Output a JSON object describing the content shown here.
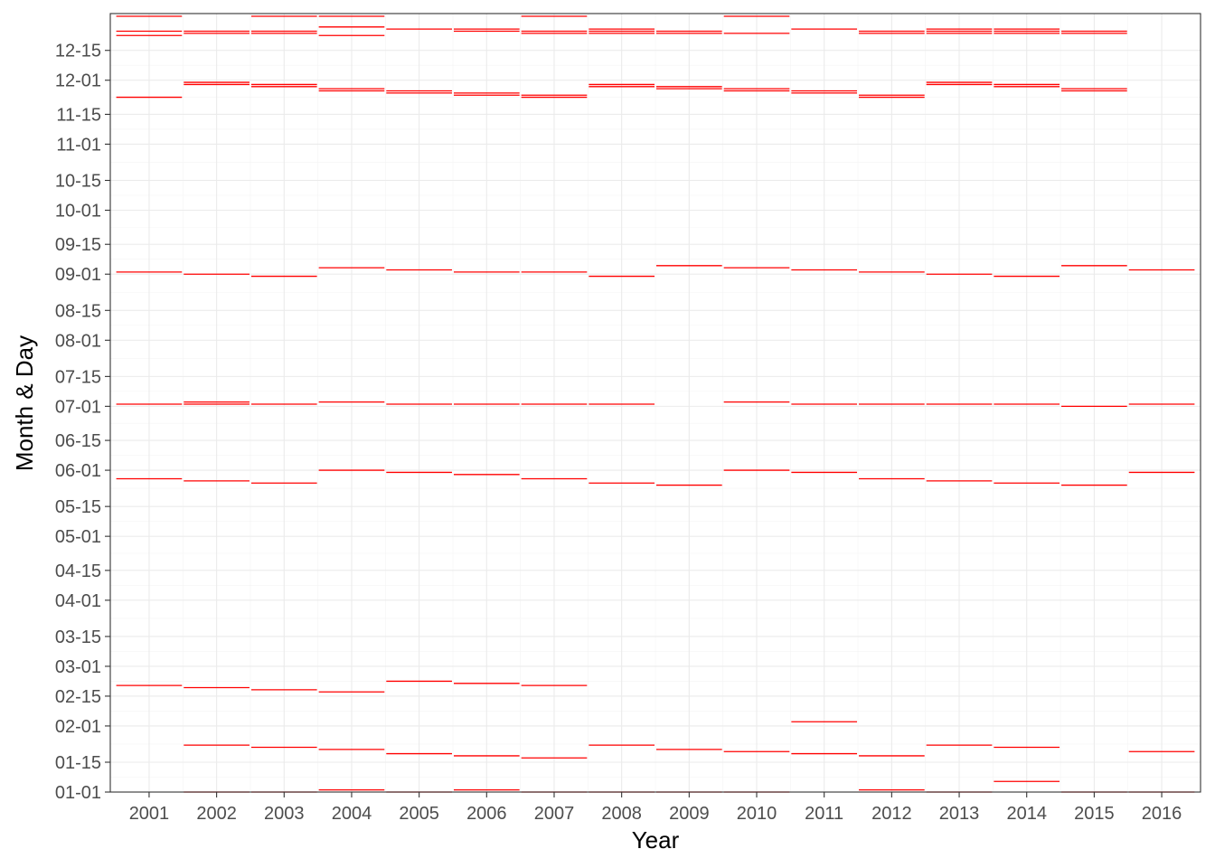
{
  "chart_data": {
    "type": "line",
    "xlabel": "Year",
    "ylabel": "Month & Day",
    "x": [
      "2001",
      "2002",
      "2003",
      "2004",
      "2005",
      "2006",
      "2007",
      "2008",
      "2009",
      "2010",
      "2011",
      "2012",
      "2013",
      "2014",
      "2015",
      "2016"
    ],
    "y_ticks": [
      "01-01",
      "01-15",
      "02-01",
      "02-15",
      "03-01",
      "03-15",
      "04-01",
      "04-15",
      "05-01",
      "05-15",
      "06-01",
      "06-15",
      "07-01",
      "07-15",
      "08-01",
      "08-15",
      "09-01",
      "09-15",
      "10-01",
      "10-15",
      "11-01",
      "11-15",
      "12-01",
      "12-15"
    ],
    "ylim": [
      "01-01",
      "12-31"
    ],
    "grid": true,
    "line_color": "#ff0000",
    "segments": {
      "2001": [
        "02-20",
        "05-28",
        "07-02",
        "09-02",
        "11-23",
        "12-22",
        "12-24",
        "12-31"
      ],
      "2002": [
        "01-01",
        "01-23",
        "02-19",
        "05-27",
        "07-02",
        "07-03",
        "09-01",
        "11-29",
        "11-30",
        "12-23",
        "12-24"
      ],
      "2003": [
        "01-01",
        "01-22",
        "02-18",
        "05-26",
        "07-02",
        "08-31",
        "11-28",
        "11-29",
        "12-23",
        "12-24",
        "12-31"
      ],
      "2004": [
        "01-02",
        "01-21",
        "02-17",
        "06-01",
        "07-03",
        "09-04",
        "11-26",
        "11-27",
        "12-22",
        "12-26",
        "12-31"
      ],
      "2005": [
        "01-01",
        "01-19",
        "02-22",
        "05-31",
        "07-02",
        "09-03",
        "11-25",
        "11-26",
        "12-25"
      ],
      "2006": [
        "01-02",
        "01-18",
        "02-21",
        "05-30",
        "07-02",
        "09-02",
        "11-24",
        "11-25",
        "12-24",
        "12-25"
      ],
      "2007": [
        "01-01",
        "01-17",
        "02-20",
        "05-28",
        "07-02",
        "09-02",
        "11-23",
        "11-24",
        "12-23",
        "12-24",
        "12-31"
      ],
      "2008": [
        "01-01",
        "01-23",
        "05-26",
        "07-02",
        "08-31",
        "11-28",
        "11-29",
        "12-23",
        "12-24",
        "12-25"
      ],
      "2009": [
        "01-01",
        "01-21",
        "05-25",
        "09-05",
        "11-27",
        "11-28",
        "12-23",
        "12-24"
      ],
      "2010": [
        "01-01",
        "01-20",
        "06-01",
        "07-03",
        "09-04",
        "11-26",
        "11-27",
        "12-23",
        "12-31"
      ],
      "2011": [
        "01-19",
        "02-03",
        "05-31",
        "07-02",
        "09-03",
        "11-25",
        "11-26",
        "12-25"
      ],
      "2012": [
        "01-02",
        "01-18",
        "05-28",
        "07-02",
        "09-02",
        "11-23",
        "11-24",
        "12-23",
        "12-24"
      ],
      "2013": [
        "01-01",
        "01-23",
        "05-27",
        "07-02",
        "09-01",
        "11-29",
        "11-30",
        "12-23",
        "12-24",
        "12-25"
      ],
      "2014": [
        "01-06",
        "01-22",
        "05-26",
        "07-02",
        "08-31",
        "11-28",
        "11-29",
        "12-23",
        "12-24",
        "12-25"
      ],
      "2015": [
        "01-01",
        "05-25",
        "07-01",
        "09-05",
        "11-26",
        "11-27",
        "12-23",
        "12-24"
      ],
      "2016": [
        "01-01",
        "01-20",
        "05-31",
        "07-02",
        "09-03"
      ]
    }
  }
}
